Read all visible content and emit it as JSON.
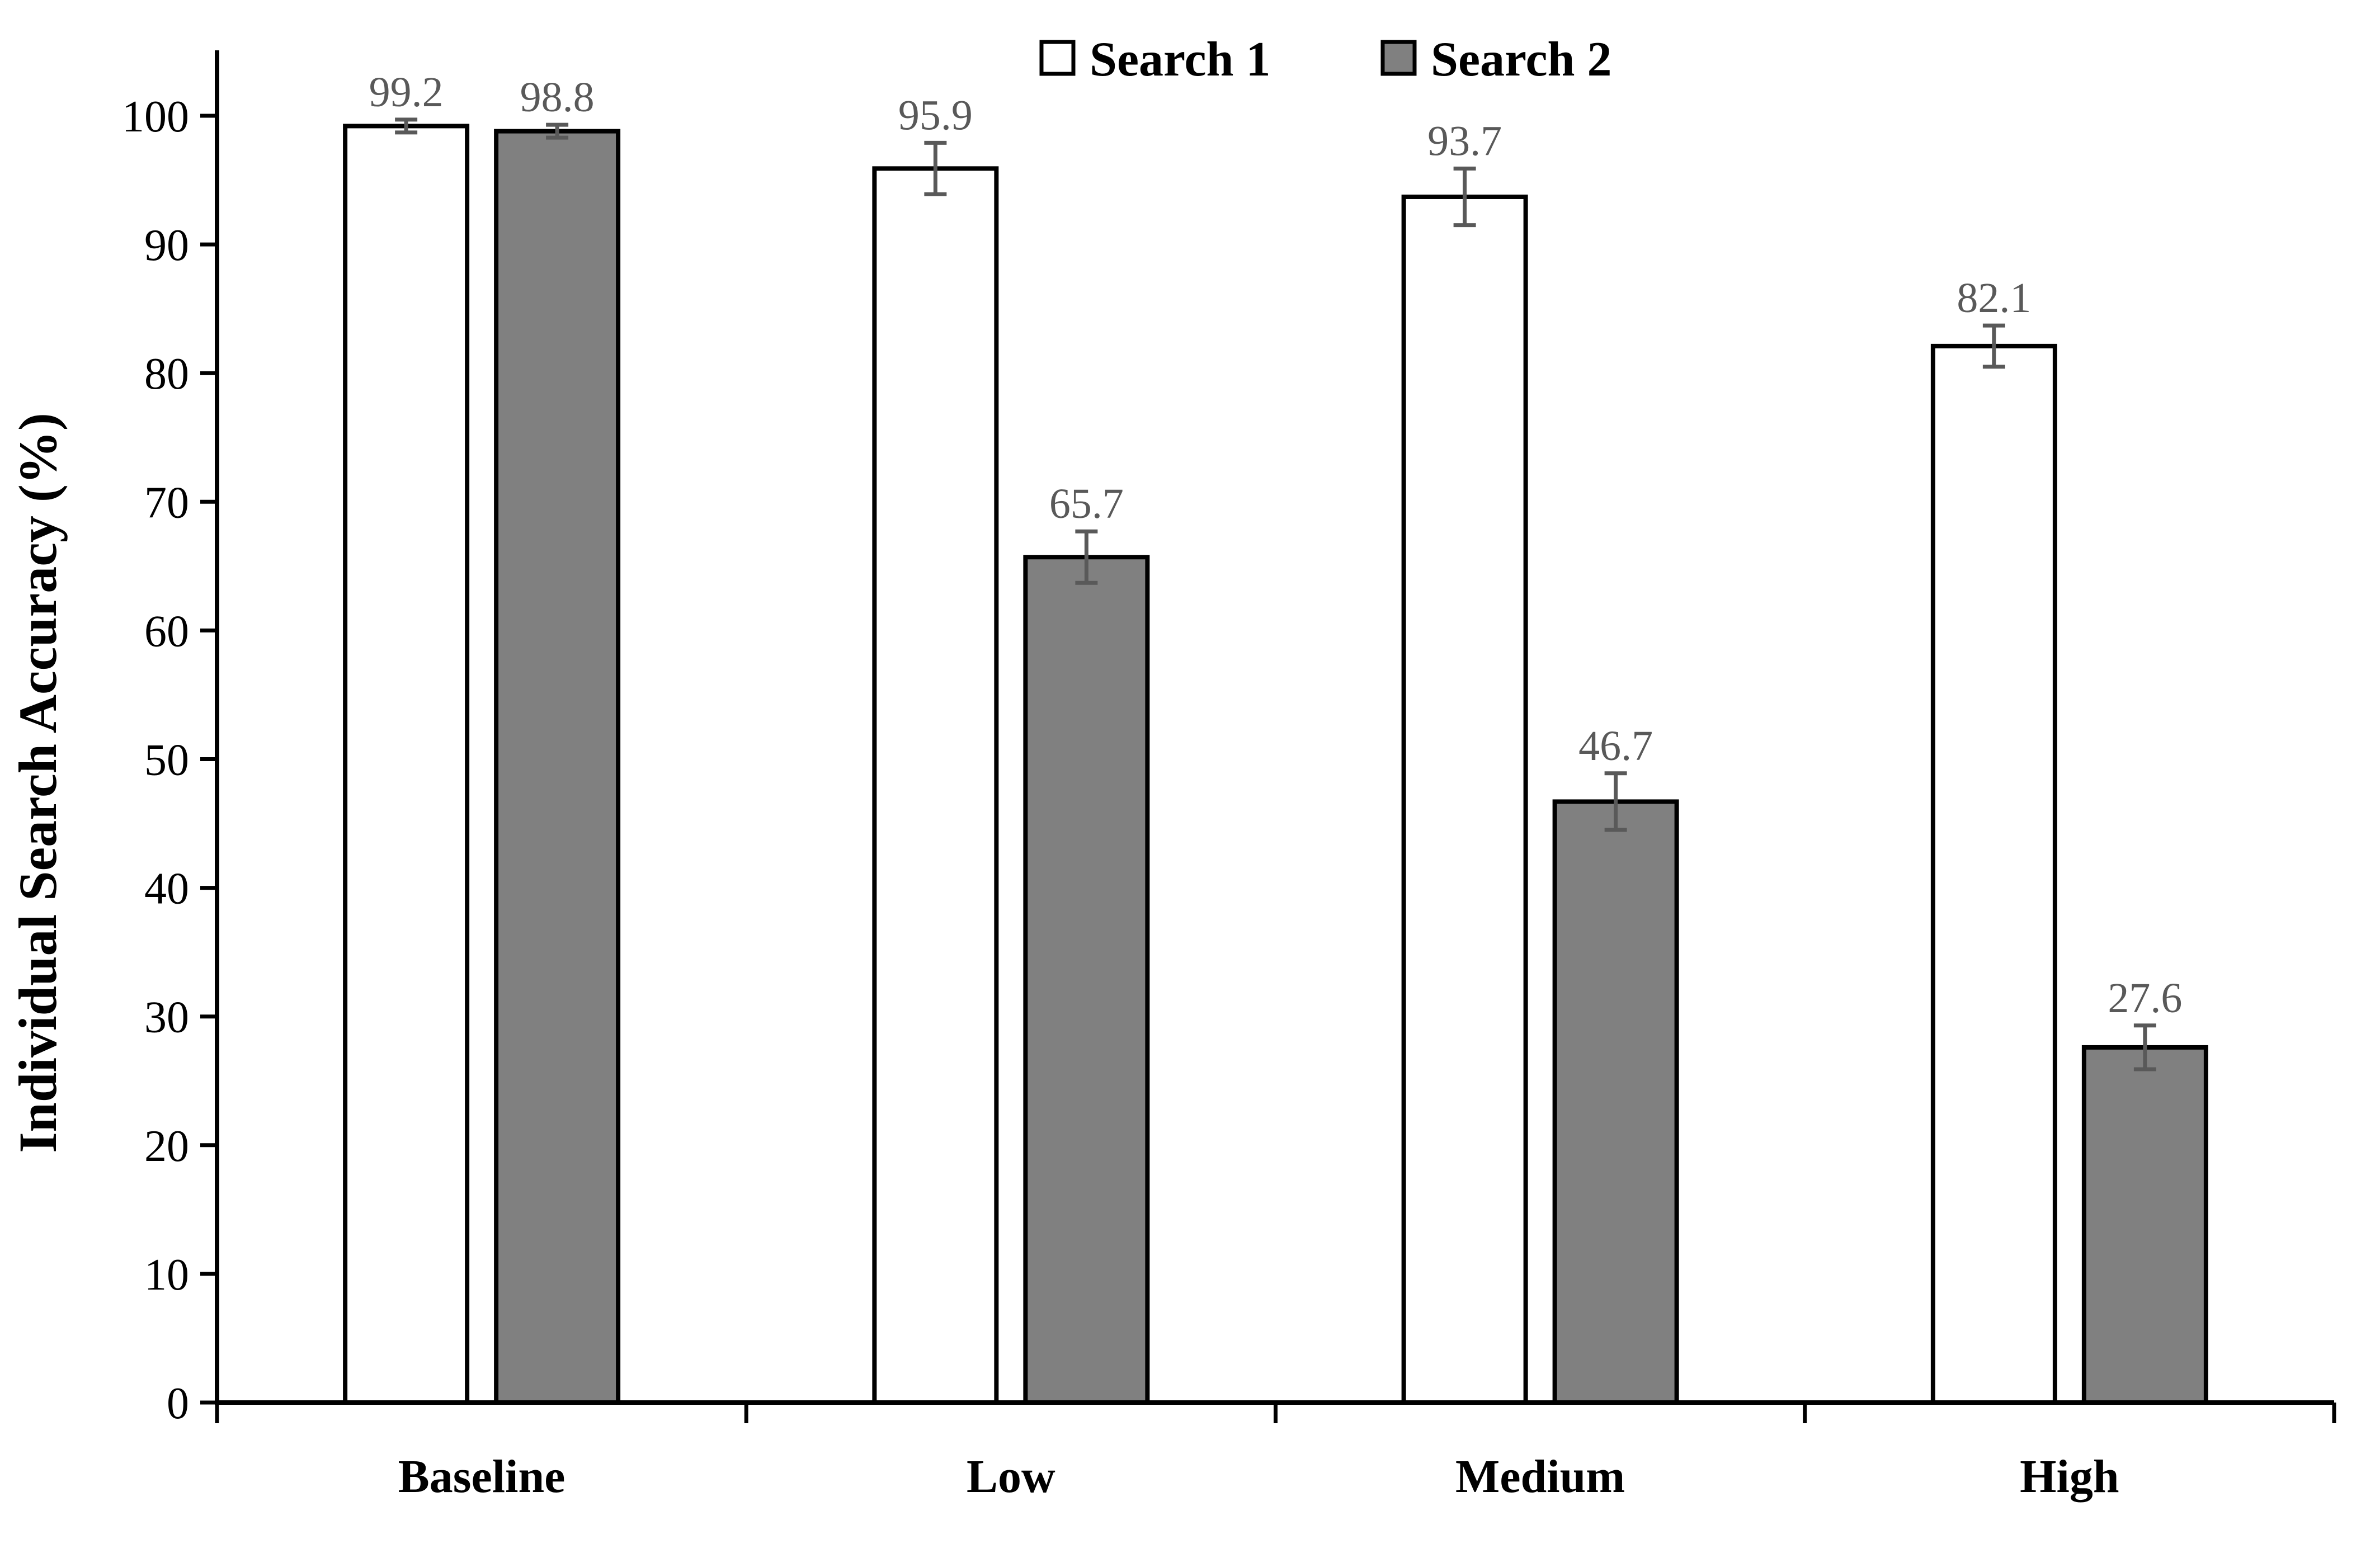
{
  "chart_data": {
    "type": "bar",
    "title": "",
    "ylabel": "Individual Search Accuracy (%)",
    "xlabel": "",
    "categories": [
      "Baseline",
      "Low",
      "Medium",
      "High"
    ],
    "series": [
      {
        "name": "Search 1",
        "fill": "#ffffff",
        "values": [
          99.2,
          95.9,
          93.7,
          82.1
        ],
        "errors": [
          0.5,
          2.0,
          2.2,
          1.6
        ],
        "value_labels": [
          "99.2",
          "95.9",
          "93.7",
          "82.1"
        ]
      },
      {
        "name": "Search 2",
        "fill": "#808080",
        "values": [
          98.8,
          65.7,
          46.7,
          27.6
        ],
        "errors": [
          0.5,
          2.0,
          2.2,
          1.7
        ],
        "value_labels": [
          "98.8",
          "65.7",
          "46.7",
          "27.6"
        ]
      }
    ],
    "y_ticks": [
      "0",
      "10",
      "20",
      "30",
      "40",
      "50",
      "60",
      "70",
      "80",
      "90",
      "100"
    ],
    "ylim": [
      0,
      105
    ],
    "grid": false,
    "legend_position": "top-center",
    "colors": {
      "bar_border": "#000000",
      "axis": "#000000",
      "error_bar": "#595959",
      "value_label": "#595959",
      "tick_label": "#000000",
      "category_label": "#000000",
      "legend_text": "#000000"
    }
  }
}
